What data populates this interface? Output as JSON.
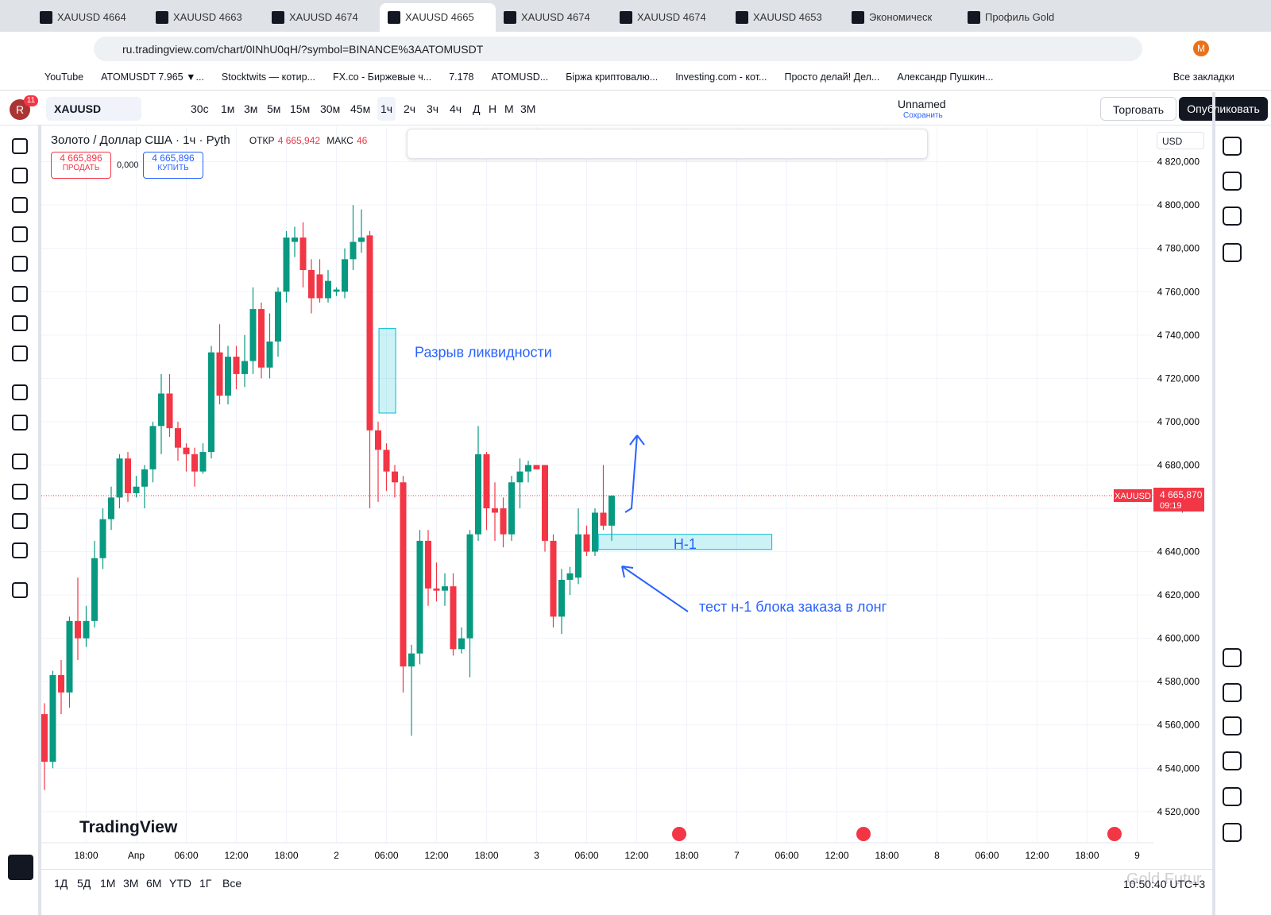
{
  "browser": {
    "tabs": [
      "XAUUSD 4664",
      "XAUUSD 4663",
      "XAUUSD 4674",
      "XAUUSD 4665",
      "XAUUSD 4674",
      "XAUUSD 4674",
      "XAUUSD 4653",
      "Экономическ",
      "Профиль Gold"
    ],
    "url": "ru.tradingview.com/chart/0INhU0qH/?symbol=BINANCE%3AATOMUSDT",
    "profile": "M",
    "bookmarks": [
      "YouTube",
      "ATOMUSDT 7.965 ▼...",
      "Stocktwits — котир...",
      "FX.co - Биржевые ч...",
      "7.178",
      "ATOMUSD...",
      "Біржа криптовалю...",
      "Investing.com - кот...",
      "Просто делай! Дел...",
      "Александр Пушкин..."
    ],
    "all_bookmarks": "Все закладки"
  },
  "toolbar": {
    "avatar": "R",
    "badge": "11",
    "symbol": "XAUUSD",
    "intervals": [
      "30с",
      "1м",
      "3м",
      "5м",
      "15м",
      "30м",
      "45м",
      "1ч",
      "2ч",
      "3ч",
      "4ч",
      "Д",
      "Н",
      "М",
      "3М"
    ],
    "layout_name": "Unnamed",
    "save": "Сохранить",
    "trade": "Торговать",
    "publish": "Опубликовать"
  },
  "legend": {
    "title": "Золото / Доллар США · 1ч · Pyth",
    "open_label": "ОТКР",
    "open_value": "4 665,942",
    "high_label": "МАКС",
    "high_value": "46",
    "sell_price": "4 665,896",
    "sell": "ПРОДАТЬ",
    "spread": "0,000",
    "buy_price": "4 665,896",
    "buy": "КУПИТЬ",
    "currency": "USD"
  },
  "chart_data": {
    "type": "candlestick",
    "up_color": "#089981",
    "down_color": "#f23645",
    "grid": true,
    "open": [
      4565,
      4543,
      4583,
      4575,
      4608,
      4600,
      4608,
      4637,
      4655,
      4665,
      4683,
      4667,
      4670,
      4678,
      4698,
      4713,
      4697,
      4688,
      4685,
      4677,
      4686,
      4732,
      4712,
      4730,
      4722,
      4728,
      4752,
      4725,
      4737,
      4760,
      4783,
      4785,
      4770,
      4768,
      4757,
      4760,
      4760,
      4775,
      4783,
      4786,
      4696,
      4687,
      4677,
      4672,
      4587,
      4593,
      4645,
      4623,
      4622,
      4624,
      4595,
      4600,
      4648,
      4685,
      4660,
      4660,
      4648,
      4672,
      4677,
      4680,
      4680,
      4645,
      4610,
      4627,
      4628,
      4648,
      4640,
      4658,
      4652
    ],
    "high": [
      4570,
      4585,
      4590,
      4610,
      4628,
      4615,
      4645,
      4660,
      4670,
      4685,
      4686,
      4675,
      4680,
      4700,
      4722,
      4722,
      4700,
      4690,
      4688,
      4690,
      4735,
      4745,
      4735,
      4735,
      4740,
      4762,
      4755,
      4750,
      4762,
      4788,
      4790,
      4792,
      4775,
      4775,
      4770,
      4762,
      4780,
      4800,
      4798,
      4788,
      4700,
      4690,
      4680,
      4675,
      4597,
      4650,
      4650,
      4635,
      4630,
      4630,
      4605,
      4650,
      4698,
      4686,
      4672,
      4665,
      4675,
      4683,
      4682,
      4680,
      4680,
      4648,
      4632,
      4633,
      4660,
      4652,
      4660,
      4680,
      4666
    ],
    "low": [
      4530,
      4540,
      4565,
      4568,
      4590,
      4596,
      4605,
      4632,
      4650,
      4660,
      4663,
      4665,
      4660,
      4672,
      4685,
      4693,
      4682,
      4677,
      4670,
      4676,
      4683,
      4708,
      4708,
      4715,
      4716,
      4722,
      4720,
      4720,
      4730,
      4755,
      4776,
      4762,
      4750,
      4755,
      4755,
      4758,
      4757,
      4770,
      4778,
      4660,
      4663,
      4668,
      4665,
      4575,
      4555,
      4588,
      4615,
      4617,
      4615,
      4592,
      4593,
      4582,
      4645,
      4650,
      4645,
      4642,
      4645,
      4660,
      4672,
      4678,
      4640,
      4605,
      4602,
      4620,
      4625,
      4638,
      4638,
      4650,
      4645
    ],
    "close": [
      4543,
      4583,
      4575,
      4608,
      4600,
      4608,
      4637,
      4655,
      4665,
      4683,
      4667,
      4670,
      4678,
      4698,
      4713,
      4697,
      4688,
      4685,
      4677,
      4686,
      4732,
      4712,
      4730,
      4722,
      4728,
      4752,
      4725,
      4737,
      4760,
      4785,
      4785,
      4770,
      4757,
      4757,
      4765,
      4761,
      4775,
      4783,
      4785,
      4696,
      4687,
      4677,
      4672,
      4587,
      4593,
      4645,
      4623,
      4622,
      4624,
      4595,
      4600,
      4648,
      4685,
      4660,
      4658,
      4648,
      4672,
      4677,
      4680,
      4678,
      4645,
      4610,
      4627,
      4630,
      4648,
      4640,
      4658,
      4652,
      4665.87
    ],
    "xlim": [
      -0.38,
      132.95
    ],
    "xticks": [
      {
        "value": 5,
        "label": "18:00"
      },
      {
        "value": 11,
        "label": "Апр"
      },
      {
        "value": 17,
        "label": "06:00"
      },
      {
        "value": 23,
        "label": "12:00"
      },
      {
        "value": 29,
        "label": "18:00"
      },
      {
        "value": 35,
        "label": "2"
      },
      {
        "value": 41,
        "label": "06:00"
      },
      {
        "value": 47,
        "label": "12:00"
      },
      {
        "value": 53,
        "label": "18:00"
      },
      {
        "value": 59,
        "label": "3"
      },
      {
        "value": 65,
        "label": "06:00"
      },
      {
        "value": 71,
        "label": "12:00"
      },
      {
        "value": 77,
        "label": "18:00"
      },
      {
        "value": 83,
        "label": "7"
      },
      {
        "value": 89,
        "label": "06:00"
      },
      {
        "value": 95,
        "label": "12:00"
      },
      {
        "value": 101,
        "label": "18:00"
      },
      {
        "value": 107,
        "label": "8"
      },
      {
        "value": 113,
        "label": "06:00"
      },
      {
        "value": 119,
        "label": "12:00"
      },
      {
        "value": 125,
        "label": "18:00"
      },
      {
        "value": 131,
        "label": "9"
      }
    ],
    "ylim": [
      4506,
      4836
    ],
    "yticks": [
      {
        "value": 4820,
        "label": "4 820,000"
      },
      {
        "value": 4800,
        "label": "4 800,000"
      },
      {
        "value": 4780,
        "label": "4 780,000"
      },
      {
        "value": 4760,
        "label": "4 760,000"
      },
      {
        "value": 4740,
        "label": "4 740,000"
      },
      {
        "value": 4720,
        "label": "4 720,000"
      },
      {
        "value": 4700,
        "label": "4 700,000"
      },
      {
        "value": 4680,
        "label": "4 680,000"
      },
      {
        "value": 4660,
        "label": "4 660,000"
      },
      {
        "value": 4640,
        "label": "4 640,000"
      },
      {
        "value": 4620,
        "label": "4 620,000"
      },
      {
        "value": 4600,
        "label": "4 600,000"
      },
      {
        "value": 4580,
        "label": "4 580,000"
      },
      {
        "value": 4560,
        "label": "4 560,000"
      },
      {
        "value": 4540,
        "label": "4 540,000"
      },
      {
        "value": 4520,
        "label": "4 520,000"
      }
    ],
    "last_price": {
      "value": 4665.87,
      "label": "4 665,870"
    },
    "symbol_label": "XAUUSD",
    "countdown": "09:19",
    "zones": [
      {
        "label": "Разрыв ликвидности",
        "x_range": [
          40.1,
          42.1
        ],
        "y_range": [
          4704,
          4743
        ]
      },
      {
        "label": "Н-1",
        "x_range": [
          66.4,
          87.2
        ],
        "y_range": [
          4641,
          4648
        ]
      }
    ],
    "annotation": "тест н-1 блока заказа в лонг"
  },
  "bottom": {
    "ranges": [
      "1Д",
      "5Д",
      "1М",
      "3М",
      "6М",
      "YTD",
      "1Г",
      "Все"
    ],
    "logo": "TradingView",
    "clock": "10:50:40 UTC+3",
    "watermark": "Gold Futur"
  }
}
